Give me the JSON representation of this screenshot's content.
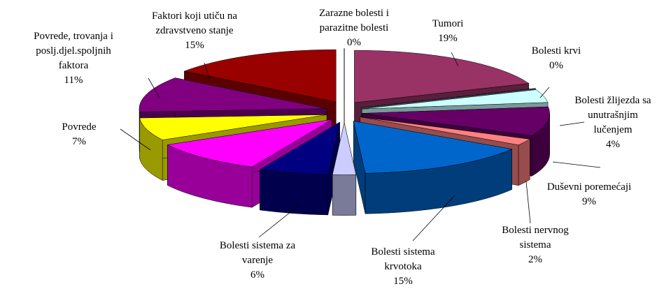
{
  "chart_data": {
    "type": "pie3d",
    "categories": [
      "Tumori",
      "Bolesti krvi",
      "Bolesti žlijezda sa\nunutrašnjim\nlučenjem",
      "Duševni poremećaji",
      "Bolesti nervnog\nsistema",
      "Bolesti sistema\nkrvotoka",
      null,
      "Bolesti sistema za\nvarenje",
      null,
      "Povrede",
      "Povrede, trovanja i\nposlj.djel.spoljnih\nfaktora",
      "Faktori koji utiču na\nzdravstveno stanje",
      "Zarazne bolesti i\nparazitne bolesti"
    ],
    "values": [
      19,
      0,
      4,
      9,
      2,
      15,
      2,
      6,
      10,
      7,
      11,
      15,
      0
    ],
    "value_labels": [
      "19%",
      "0%",
      "4%",
      "9%",
      "2%",
      "15%",
      null,
      "6%",
      null,
      "7%",
      "11%",
      "15%",
      "0%"
    ],
    "colors": [
      "#993366",
      "#669999",
      "#ccffff",
      "#660066",
      "#ff8080",
      "#0066cc",
      "#ccccff",
      "#000080",
      "#ff00ff",
      "#ffff00",
      "#800080",
      "#990000",
      "#ccccff"
    ]
  }
}
